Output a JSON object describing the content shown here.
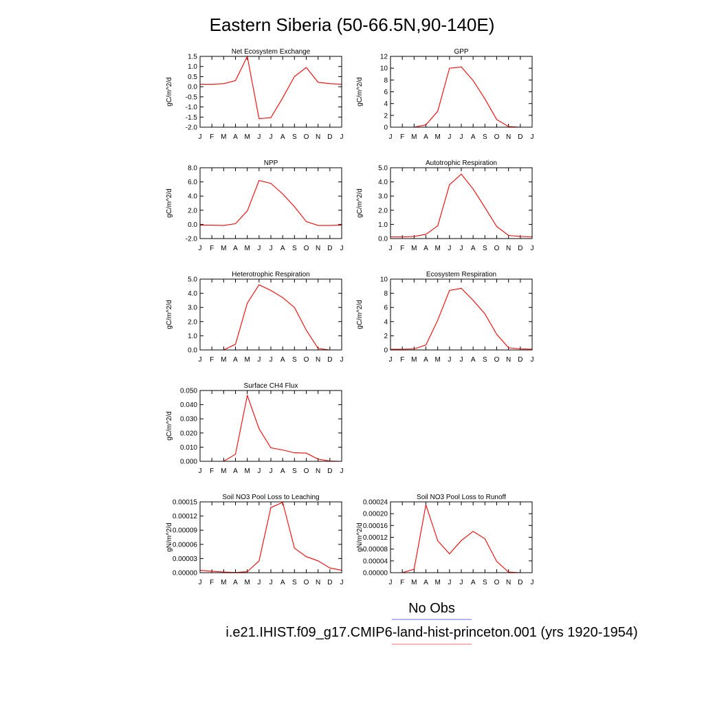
{
  "title": "Eastern Siberia (50-66.5N,90-140E)",
  "legend": {
    "obs_label": "No Obs",
    "obs_color": "#6b6bff",
    "model_label": "i.e21.IHIST.f09_g17.CMIP6-land-hist-princeton.001 (yrs 1920-1954)",
    "model_color": "#ff6b6b"
  },
  "line_color": "#ff0000",
  "chart_data": [
    {
      "type": "line",
      "title": "Net Ecosystem Exchange",
      "ylabel": "gC/m^2/d",
      "categories": [
        "J",
        "F",
        "M",
        "A",
        "M",
        "J",
        "J",
        "A",
        "S",
        "O",
        "N",
        "D",
        "J"
      ],
      "ylim": [
        -2.0,
        1.5
      ],
      "yticks": [
        "-2.0",
        "-1.5",
        "-1.0",
        "-0.5",
        "0.0",
        "0.5",
        "1.0",
        "1.5"
      ],
      "series": [
        {
          "values": [
            0.12,
            0.12,
            0.15,
            0.3,
            1.5,
            -1.58,
            -1.53,
            -0.55,
            0.5,
            0.95,
            0.22,
            0.15,
            0.12
          ]
        }
      ]
    },
    {
      "type": "line",
      "title": "GPP",
      "ylabel": "gC/m^2/d",
      "categories": [
        "J",
        "F",
        "M",
        "A",
        "M",
        "J",
        "J",
        "A",
        "S",
        "O",
        "N",
        "D",
        "J"
      ],
      "ylim": [
        0,
        12
      ],
      "yticks": [
        "0",
        "2",
        "4",
        "6",
        "8",
        "10",
        "12"
      ],
      "series": [
        {
          "values": [
            0.0,
            0.0,
            0.0,
            0.4,
            2.7,
            10.0,
            10.2,
            7.9,
            4.8,
            1.3,
            0.1,
            0.0,
            0.0
          ]
        }
      ]
    },
    {
      "type": "line",
      "title": "NPP",
      "ylabel": "gC/m^2/d",
      "categories": [
        "J",
        "F",
        "M",
        "A",
        "M",
        "J",
        "J",
        "A",
        "S",
        "O",
        "N",
        "D",
        "J"
      ],
      "ylim": [
        -2.0,
        8.0
      ],
      "yticks": [
        "-2.0",
        "0.0",
        "2.0",
        "4.0",
        "6.0",
        "8.0"
      ],
      "series": [
        {
          "values": [
            -0.1,
            -0.12,
            -0.15,
            0.1,
            1.9,
            6.2,
            5.8,
            4.3,
            2.5,
            0.4,
            -0.15,
            -0.15,
            -0.1
          ]
        }
      ]
    },
    {
      "type": "line",
      "title": "Autotrophic Respiration",
      "ylabel": "gC/m^2/d",
      "categories": [
        "J",
        "F",
        "M",
        "A",
        "M",
        "J",
        "J",
        "A",
        "S",
        "O",
        "N",
        "D",
        "J"
      ],
      "ylim": [
        0.0,
        5.0
      ],
      "yticks": [
        "0.0",
        "1.0",
        "2.0",
        "3.0",
        "4.0",
        "5.0"
      ],
      "series": [
        {
          "values": [
            0.12,
            0.12,
            0.15,
            0.3,
            0.9,
            3.8,
            4.55,
            3.5,
            2.2,
            0.85,
            0.22,
            0.15,
            0.12
          ]
        }
      ]
    },
    {
      "type": "line",
      "title": "Heterotrophic Respiration",
      "ylabel": "gC/m^2/d",
      "categories": [
        "J",
        "F",
        "M",
        "A",
        "M",
        "J",
        "J",
        "A",
        "S",
        "O",
        "N",
        "D",
        "J"
      ],
      "ylim": [
        0.0,
        5.0
      ],
      "yticks": [
        "0.0",
        "1.0",
        "2.0",
        "3.0",
        "4.0",
        "5.0"
      ],
      "series": [
        {
          "values": [
            0.0,
            0.0,
            0.0,
            0.4,
            3.3,
            4.6,
            4.2,
            3.7,
            3.0,
            1.4,
            0.1,
            0.0,
            0.0
          ]
        }
      ]
    },
    {
      "type": "line",
      "title": "Ecosystem Respiration",
      "ylabel": "gC/m^2/d",
      "categories": [
        "J",
        "F",
        "M",
        "A",
        "M",
        "J",
        "J",
        "A",
        "S",
        "O",
        "N",
        "D",
        "J"
      ],
      "ylim": [
        0,
        10
      ],
      "yticks": [
        "0",
        "2",
        "4",
        "6",
        "8",
        "10"
      ],
      "series": [
        {
          "values": [
            0.1,
            0.1,
            0.15,
            0.7,
            4.2,
            8.4,
            8.7,
            7.0,
            5.1,
            2.2,
            0.3,
            0.15,
            0.1
          ]
        }
      ]
    },
    {
      "type": "line",
      "title": "Surface CH4 Flux",
      "ylabel": "gC/m^2/d",
      "categories": [
        "J",
        "F",
        "M",
        "A",
        "M",
        "J",
        "J",
        "A",
        "S",
        "O",
        "N",
        "D",
        "J"
      ],
      "ylim": [
        0.0,
        0.05
      ],
      "yticks": [
        "0.000",
        "0.010",
        "0.020",
        "0.030",
        "0.040",
        "0.050"
      ],
      "series": [
        {
          "values": [
            0.0,
            0.0,
            0.0,
            0.005,
            0.0465,
            0.023,
            0.0095,
            0.008,
            0.006,
            0.0058,
            0.0015,
            0.0002,
            0.0
          ]
        }
      ]
    },
    null,
    {
      "type": "line",
      "title": "Soil NO3 Pool Loss to Leaching",
      "ylabel": "gN/m^2/d",
      "categories": [
        "J",
        "F",
        "M",
        "A",
        "M",
        "J",
        "J",
        "A",
        "S",
        "O",
        "N",
        "D",
        "J"
      ],
      "ylim": [
        0.0,
        0.00015
      ],
      "yticks": [
        "0.00000",
        "0.00003",
        "0.00006",
        "0.00009",
        "0.00012",
        "0.00015"
      ],
      "series": [
        {
          "values": [
            5e-06,
            3e-06,
            1.5e-06,
            5e-07,
            2e-06,
            2.5e-05,
            0.000138,
            0.000149,
            5.2e-05,
            3.4e-05,
            2.5e-05,
            1e-05,
            5e-06
          ]
        }
      ]
    },
    {
      "type": "line",
      "title": "Soil NO3 Pool Loss to Runoff",
      "ylabel": "gN/m^2/d",
      "categories": [
        "J",
        "F",
        "M",
        "A",
        "M",
        "J",
        "J",
        "A",
        "S",
        "O",
        "N",
        "D",
        "J"
      ],
      "ylim": [
        0.0,
        0.00024
      ],
      "yticks": [
        "0.00000",
        "0.00004",
        "0.00008",
        "0.00012",
        "0.00016",
        "0.00020",
        "0.00024"
      ],
      "series": [
        {
          "values": [
            0.0,
            0.0,
            1.2e-05,
            0.00023,
            0.000108,
            6.4e-05,
            0.000109,
            0.00014,
            0.000115,
            3.8e-05,
            2e-06,
            0.0,
            0.0
          ]
        }
      ]
    }
  ]
}
